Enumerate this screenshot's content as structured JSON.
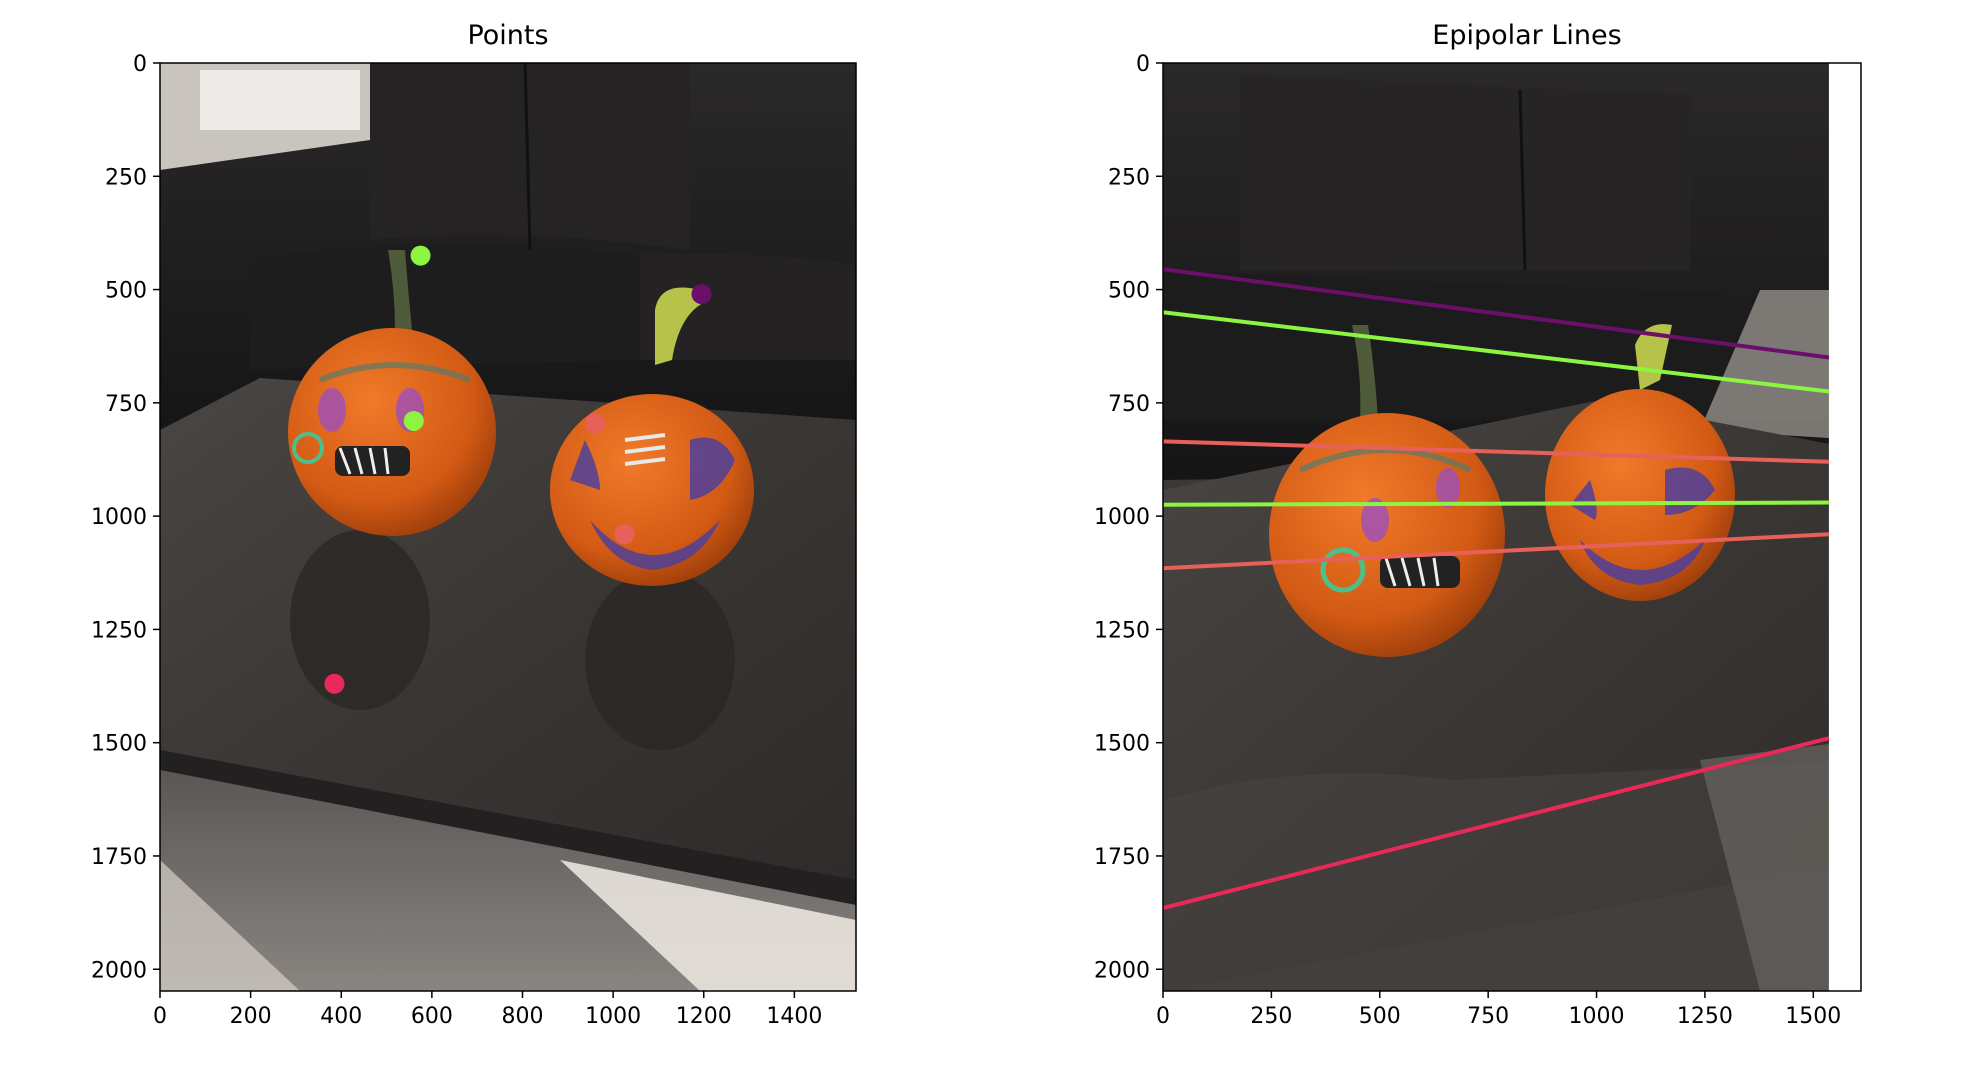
{
  "chart_data": [
    {
      "type": "scatter",
      "title": "Points",
      "xlim": [
        0,
        1536
      ],
      "ylim": [
        2048,
        0
      ],
      "x_ticks": [
        0,
        200,
        400,
        600,
        800,
        1000,
        1200,
        1400
      ],
      "y_ticks": [
        0,
        250,
        500,
        750,
        1000,
        1250,
        1500,
        1750,
        2000
      ],
      "background": "photo: two painted jack-o'-lantern pumpkins on a dark wood coffee table in front of a black leather sofa",
      "points": [
        {
          "x": 575,
          "y": 425,
          "color": "#8cf542"
        },
        {
          "x": 560,
          "y": 790,
          "color": "#8cf542"
        },
        {
          "x": 1195,
          "y": 510,
          "color": "#6b0f6b"
        },
        {
          "x": 960,
          "y": 795,
          "color": "#e8605a"
        },
        {
          "x": 1025,
          "y": 1040,
          "color": "#e8605a"
        },
        {
          "x": 385,
          "y": 1370,
          "color": "#e8295a"
        }
      ]
    },
    {
      "type": "line",
      "title": "Epipolar Lines",
      "xlim": [
        0,
        1610
      ],
      "ylim": [
        2048,
        0
      ],
      "x_ticks": [
        0,
        250,
        500,
        750,
        1000,
        1250,
        1500
      ],
      "y_ticks": [
        0,
        250,
        500,
        750,
        1000,
        1250,
        1500,
        1750,
        2000
      ],
      "image_extent_x": [
        0,
        1536
      ],
      "background": "photo: same two pumpkins on the coffee table seen from a second viewpoint",
      "series": [
        {
          "color": "#6b0f6b",
          "x": [
            0,
            1536
          ],
          "y": [
            455,
            650
          ]
        },
        {
          "color": "#8cf542",
          "x": [
            0,
            1536
          ],
          "y": [
            550,
            725
          ]
        },
        {
          "color": "#e8605a",
          "x": [
            0,
            1536
          ],
          "y": [
            835,
            880
          ]
        },
        {
          "color": "#8cf542",
          "x": [
            0,
            1536
          ],
          "y": [
            975,
            970
          ]
        },
        {
          "color": "#e8605a",
          "x": [
            0,
            1536
          ],
          "y": [
            1115,
            1040
          ]
        },
        {
          "color": "#e8295a",
          "x": [
            0,
            1536
          ],
          "y": [
            1865,
            1490
          ]
        }
      ]
    }
  ]
}
